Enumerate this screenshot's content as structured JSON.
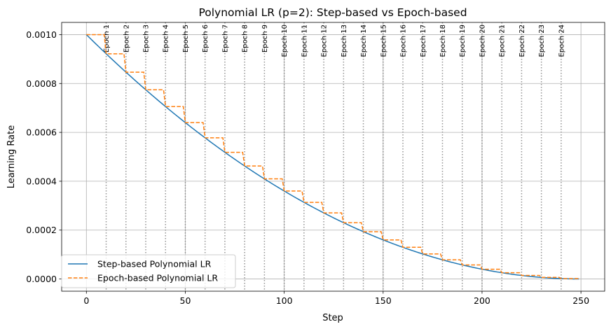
{
  "chart_data": {
    "type": "line",
    "title": "Polynomial LR (p=2): Step-based vs Epoch-based",
    "xlabel": "Step",
    "ylabel": "Learning Rate",
    "xlim": [
      -12.5,
      262
    ],
    "ylim": [
      -5e-05,
      0.00105
    ],
    "xticks": [
      0,
      50,
      100,
      150,
      200,
      250
    ],
    "xtick_labels": [
      "0",
      "50",
      "100",
      "150",
      "200",
      "250"
    ],
    "yticks": [
      0.0,
      0.0002,
      0.0004,
      0.0006,
      0.0008,
      0.001
    ],
    "ytick_labels": [
      "0.0000",
      "0.0002",
      "0.0004",
      "0.0006",
      "0.0008",
      "0.0010"
    ],
    "grid": true,
    "legend_position": "lower-left",
    "total_steps": 250,
    "steps_per_epoch": 10,
    "power": 2,
    "base_lr": 0.001,
    "series": [
      {
        "name": "Step-based Polynomial LR",
        "style": "solid",
        "color": "#1f77b4",
        "x_range": [
          0,
          249
        ],
        "formula": "base_lr * (1 - step/total_steps)^power"
      },
      {
        "name": "Epoch-based Polynomial LR",
        "style": "dashed",
        "color": "#ff7f0e",
        "x_range": [
          0,
          249
        ],
        "epoch_values": [
          0.001,
          0.0009216,
          0.0008464,
          0.0007744,
          0.0007056,
          0.00064,
          0.0005776,
          0.0005184,
          0.0004624,
          0.0004096,
          0.00036,
          0.0003136,
          0.0002704,
          0.0002304,
          0.0001936,
          0.00016,
          0.0001296,
          0.0001024,
          7.84e-05,
          5.76e-05,
          4e-05,
          2.56e-05,
          1.44e-05,
          6.4e-06,
          1.6e-06
        ]
      }
    ],
    "epoch_markers": {
      "positions": [
        10,
        20,
        30,
        40,
        50,
        60,
        70,
        80,
        90,
        100,
        110,
        120,
        130,
        140,
        150,
        160,
        170,
        180,
        190,
        200,
        210,
        220,
        230,
        240
      ],
      "labels": [
        "Epoch 1",
        "Epoch 2",
        "Epoch 3",
        "Epoch 4",
        "Epoch 5",
        "Epoch 6",
        "Epoch 7",
        "Epoch 8",
        "Epoch 9",
        "Epoch 10",
        "Epoch 11",
        "Epoch 12",
        "Epoch 13",
        "Epoch 14",
        "Epoch 15",
        "Epoch 16",
        "Epoch 17",
        "Epoch 18",
        "Epoch 19",
        "Epoch 20",
        "Epoch 21",
        "Epoch 22",
        "Epoch 23",
        "Epoch 24"
      ],
      "style": "dotted",
      "color": "#808080"
    }
  }
}
